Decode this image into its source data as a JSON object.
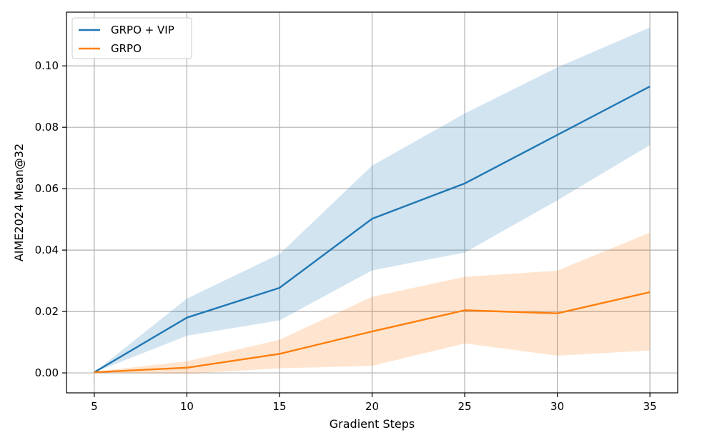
{
  "chart_data": {
    "type": "line",
    "title": "",
    "xlabel": "Gradient Steps",
    "ylabel": "AIME2024 Mean@32",
    "x": [
      5,
      10,
      15,
      20,
      25,
      30,
      35
    ],
    "xlim": [
      3.5,
      36.5
    ],
    "ylim": [
      -0.0065,
      0.1175
    ],
    "xticks": [
      5,
      10,
      15,
      20,
      25,
      30,
      35
    ],
    "yticks": [
      0.0,
      0.02,
      0.04,
      0.06,
      0.08,
      0.1
    ],
    "xtick_labels": [
      "5",
      "10",
      "15",
      "20",
      "25",
      "30",
      "35"
    ],
    "ytick_labels": [
      "0.00",
      "0.02",
      "0.04",
      "0.06",
      "0.08",
      "0.10"
    ],
    "grid": true,
    "legend_position": "top-left",
    "series": [
      {
        "name": "GRPO + VIP",
        "color": "#1f77b4",
        "band_color": "#1f77b4",
        "values": [
          0.0002,
          0.018,
          0.0277,
          0.0502,
          0.0617,
          0.0775,
          0.0933
        ],
        "lower": [
          0.0002,
          0.0121,
          0.0171,
          0.0334,
          0.0392,
          0.0562,
          0.0742
        ],
        "upper": [
          0.0002,
          0.0242,
          0.0387,
          0.0675,
          0.0845,
          0.0995,
          0.1125
        ]
      },
      {
        "name": "GRPO",
        "color": "#ff7f0e",
        "band_color": "#ff7f0e",
        "values": [
          0.0002,
          0.0017,
          0.0062,
          0.0135,
          0.0204,
          0.0194,
          0.0263
        ],
        "lower": [
          0.0,
          -0.0003,
          0.0015,
          0.0023,
          0.0096,
          0.0056,
          0.0073
        ],
        "upper": [
          0.0004,
          0.0038,
          0.0108,
          0.0248,
          0.0313,
          0.0333,
          0.0457
        ]
      }
    ]
  }
}
